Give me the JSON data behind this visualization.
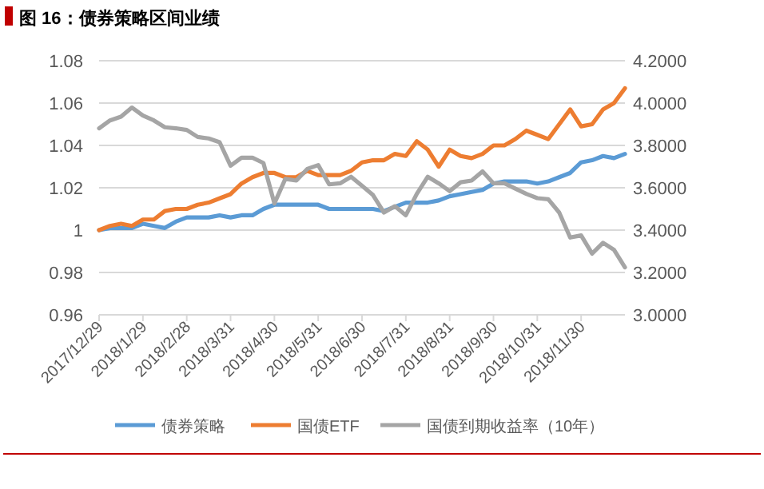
{
  "chart_data": {
    "type": "line",
    "title": "图 16：债券策略区间业绩",
    "categories": [
      "2017/12/29",
      null,
      null,
      null,
      "2018/1/29",
      null,
      null,
      null,
      "2018/2/28",
      null,
      null,
      null,
      "2018/3/31",
      null,
      null,
      null,
      "2018/4/30",
      null,
      null,
      null,
      "2018/5/31",
      null,
      null,
      null,
      "2018/6/30",
      null,
      null,
      null,
      "2018/7/31",
      null,
      null,
      null,
      "2018/8/31",
      null,
      null,
      null,
      "2018/9/30",
      null,
      null,
      null,
      "2018/10/31",
      null,
      null,
      null,
      "2018/11/30",
      null,
      null,
      null,
      null
    ],
    "series": [
      {
        "name": "债券策略",
        "color": "#5b9bd5",
        "values": [
          1.0,
          1.001,
          1.001,
          1.001,
          1.003,
          1.002,
          1.001,
          1.004,
          1.006,
          1.006,
          1.006,
          1.007,
          1.006,
          1.007,
          1.007,
          1.01,
          1.012,
          1.012,
          1.012,
          1.012,
          1.012,
          1.01,
          1.01,
          1.01,
          1.01,
          1.01,
          1.009,
          1.011,
          1.013,
          1.013,
          1.013,
          1.014,
          1.016,
          1.017,
          1.018,
          1.019,
          1.022,
          1.023,
          1.023,
          1.023,
          1.022,
          1.023,
          1.025,
          1.027,
          1.032,
          1.033,
          1.035,
          1.034,
          1.036
        ]
      },
      {
        "name": "国债ETF",
        "color": "#ed7d31",
        "values": [
          1.0,
          1.002,
          1.003,
          1.002,
          1.005,
          1.005,
          1.009,
          1.01,
          1.01,
          1.012,
          1.013,
          1.015,
          1.017,
          1.022,
          1.025,
          1.027,
          1.027,
          1.025,
          1.025,
          1.028,
          1.026,
          1.026,
          1.026,
          1.028,
          1.032,
          1.033,
          1.033,
          1.036,
          1.035,
          1.042,
          1.038,
          1.03,
          1.038,
          1.035,
          1.034,
          1.036,
          1.04,
          1.04,
          1.043,
          1.047,
          1.045,
          1.043,
          1.05,
          1.057,
          1.049,
          1.05,
          1.057,
          1.06,
          1.067
        ]
      },
      {
        "name": "国债到期收益率（10年）",
        "color": "#a5a5a5",
        "axis": "y2",
        "values": [
          3.881,
          3.918,
          3.936,
          3.979,
          3.941,
          3.918,
          3.886,
          3.881,
          3.873,
          3.84,
          3.833,
          3.815,
          3.704,
          3.742,
          3.742,
          3.717,
          3.526,
          3.642,
          3.634,
          3.689,
          3.707,
          3.616,
          3.621,
          3.652,
          3.609,
          3.566,
          3.483,
          3.513,
          3.47,
          3.571,
          3.652,
          3.621,
          3.584,
          3.626,
          3.634,
          3.677,
          3.621,
          3.621,
          3.596,
          3.571,
          3.551,
          3.546,
          3.483,
          3.365,
          3.375,
          3.289,
          3.34,
          3.307,
          3.224
        ]
      }
    ],
    "ylim": [
      0.96,
      1.08
    ],
    "yticks": [
      0.96,
      0.98,
      1,
      1.02,
      1.04,
      1.06,
      1.08
    ],
    "y2lim": [
      3.0,
      4.2
    ],
    "y2ticks": [
      {
        "value": 3,
        "label": "3.0000"
      },
      {
        "value": 3.2,
        "label": "3.2000"
      },
      {
        "value": 3.4,
        "label": "3.4000"
      },
      {
        "value": 3.6,
        "label": "3.6000"
      },
      {
        "value": 3.8,
        "label": "3.8000"
      },
      {
        "value": 4,
        "label": "4.0000"
      },
      {
        "value": 4.2,
        "label": "4.2000"
      }
    ],
    "grid": "y",
    "legend": "bottom",
    "marker": "none",
    "line_style": "solid"
  }
}
